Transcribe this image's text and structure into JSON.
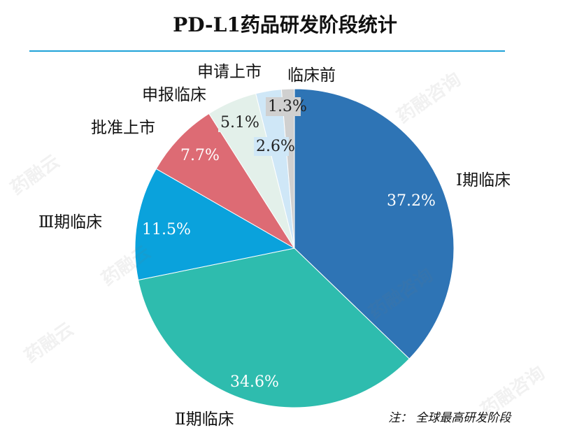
{
  "title": "PD-L1药品研发阶段统计",
  "note": "注： 全球最高研发阶段",
  "watermarks": [
    "药融云",
    "药融咨询"
  ],
  "chart_data": {
    "type": "pie",
    "title": "PD-L1药品研发阶段统计",
    "start_angle_deg": 0,
    "direction": "clockwise",
    "slices": [
      {
        "label": "Ⅰ期临床",
        "value": 37.2,
        "pct_label": "37.2%",
        "color": "#2e74b5",
        "pct_color": "#ffffff"
      },
      {
        "label": "Ⅱ期临床",
        "value": 34.6,
        "pct_label": "34.6%",
        "color": "#2ebcae",
        "pct_color": "#ffffff"
      },
      {
        "label": "Ⅲ期临床",
        "value": 11.5,
        "pct_label": "11.5%",
        "color": "#0aa2dc",
        "pct_color": "#ffffff"
      },
      {
        "label": "批准上市",
        "value": 7.7,
        "pct_label": "7.7%",
        "color": "#dd6b74",
        "pct_color": "#ffffff"
      },
      {
        "label": "申报临床",
        "value": 5.1,
        "pct_label": "5.1%",
        "color": "#e3f0ea",
        "pct_color": "#222222"
      },
      {
        "label": "申请上市",
        "value": 2.6,
        "pct_label": "2.6%",
        "color": "#cfe7f7",
        "pct_color": "#222222"
      },
      {
        "label": "临床前",
        "value": 1.3,
        "pct_label": "1.3%",
        "color": "#d0d0d0",
        "pct_color": "#222222"
      }
    ]
  }
}
